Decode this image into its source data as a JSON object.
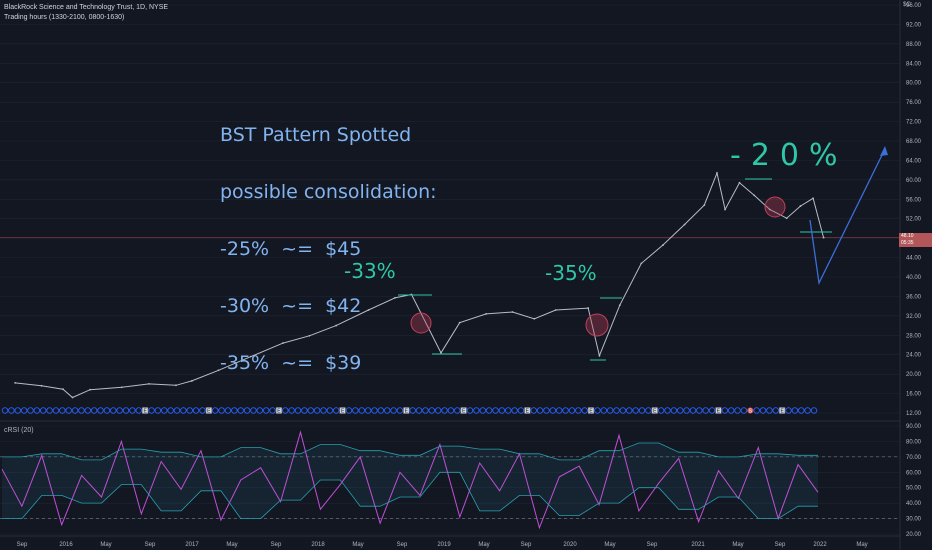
{
  "header": {
    "symbol_line": "BlackRock Science and Technology Trust, 1D, NYSE",
    "session_line": "Trading hours (1330-2100, 0800-1630)"
  },
  "currency_label": "$C",
  "current_price": {
    "value": "48.10",
    "countdown": "05:35"
  },
  "annotation_note": [
    "BST Pattern Spotted",
    "possible consolidation:",
    "-25%  ~=  $45",
    "-30%  ~=  $42",
    "-35%  ~=  $39"
  ],
  "drawn_labels": [
    "-33%",
    "-35%",
    "-20%"
  ],
  "event_markers": {
    "earnings_letter": "E",
    "split_letter": "S"
  },
  "colors": {
    "background": "#131722",
    "grid": "#1f2433",
    "price_line": "#b7bdc8",
    "price_cursor_line": "#7a3a3e",
    "current_price_tag": "#b2565a",
    "annotation_text": "#82b4f0",
    "annotation_drawing": "#2ec7a8",
    "projection_arrow": "#3c6ed8",
    "highlight_circle": "#c0405a",
    "crsi_line": "#c04fd6",
    "crsi_band": "#2a9fb0",
    "dividend_marker": "#2962ff"
  },
  "chart_data": [
    {
      "type": "line",
      "title": "BlackRock Science and Technology Trust, 1D, NYSE",
      "y_axis_ticks": [
        "12.00",
        "16.00",
        "20.00",
        "24.00",
        "28.00",
        "32.00",
        "36.00",
        "40.00",
        "44.00",
        "48.00",
        "52.00",
        "56.00",
        "60.00",
        "64.00",
        "68.00",
        "72.00",
        "76.00",
        "80.00",
        "84.00",
        "88.00",
        "92.00",
        "96.00"
      ],
      "ylim": [
        12,
        96
      ],
      "x_axis_ticks": [
        "Sep",
        "2016",
        "May",
        "Sep",
        "2017",
        "May",
        "Sep",
        "2018",
        "May",
        "Sep",
        "2019",
        "May",
        "Sep",
        "2020",
        "May",
        "Sep",
        "2021",
        "May",
        "Sep",
        "2022",
        "May"
      ],
      "x_dates": [
        "2015-09-01",
        "2015-11-15",
        "2016-01-15",
        "2016-02-11",
        "2016-04-01",
        "2016-06-30",
        "2016-09-15",
        "2016-12-01",
        "2017-01-15",
        "2017-04-01",
        "2017-07-01",
        "2017-10-01",
        "2017-12-15",
        "2018-03-01",
        "2018-06-01",
        "2018-08-15",
        "2018-10-01",
        "2018-12-24",
        "2019-02-15",
        "2019-05-01",
        "2019-07-15",
        "2019-09-15",
        "2019-11-15",
        "2020-02-15",
        "2020-03-18",
        "2020-05-15",
        "2020-07-15",
        "2020-09-15",
        "2020-11-15",
        "2021-01-10",
        "2021-02-15",
        "2021-03-10",
        "2021-04-20",
        "2021-06-01",
        "2021-07-15",
        "2021-09-01",
        "2021-10-10",
        "2021-11-15",
        "2021-12-15"
      ],
      "y_close": [
        18.2,
        17.6,
        16.9,
        15.2,
        16.8,
        17.3,
        18.0,
        17.7,
        18.6,
        20.8,
        23.6,
        26.4,
        27.9,
        30.0,
        33.2,
        35.7,
        36.4,
        24.4,
        30.6,
        32.4,
        32.8,
        31.4,
        33.2,
        33.6,
        23.8,
        34.2,
        42.8,
        46.6,
        50.8,
        54.8,
        61.4,
        53.9,
        59.4,
        56.8,
        53.9,
        52.1,
        54.6,
        56.2,
        48.1
      ],
      "last_value": 48.1,
      "series_color": "#b7bdc8",
      "grid": true
    },
    {
      "type": "line",
      "title": "cRSI (20)",
      "y_axis_ticks": [
        "20.00",
        "30.00",
        "40.00",
        "50.00",
        "60.00",
        "70.00",
        "80.00",
        "90.00"
      ],
      "ylim": [
        20,
        90
      ],
      "series": [
        {
          "values": [
            62,
            38,
            71,
            26,
            58,
            44,
            80,
            33,
            67,
            49,
            74,
            29,
            55,
            63,
            41,
            86,
            36,
            52,
            70,
            27,
            60,
            45,
            78,
            31,
            66,
            48,
            72,
            24,
            57,
            64,
            39,
            84,
            35,
            53,
            69,
            28,
            61,
            43,
            76,
            30,
            65,
            47
          ]
        },
        {
          "values": [
            30,
            30,
            45,
            45,
            40,
            40,
            52,
            52,
            35,
            35,
            48,
            48,
            30,
            30,
            42,
            42,
            55,
            55,
            38,
            38,
            44,
            44,
            60,
            60,
            35,
            35,
            45,
            45,
            32,
            32,
            40,
            40,
            50,
            50,
            36,
            36,
            44,
            44,
            30,
            30,
            38,
            38
          ]
        },
        {
          "values": [
            70,
            70,
            72,
            72,
            68,
            68,
            75,
            75,
            73,
            73,
            70,
            70,
            76,
            76,
            72,
            72,
            78,
            78,
            74,
            74,
            71,
            71,
            77,
            77,
            75,
            75,
            72,
            72,
            68,
            68,
            74,
            74,
            79,
            79,
            73,
            73,
            70,
            70,
            72,
            72,
            71,
            71
          ]
        }
      ],
      "reference_lines": [
        70,
        30
      ]
    }
  ]
}
